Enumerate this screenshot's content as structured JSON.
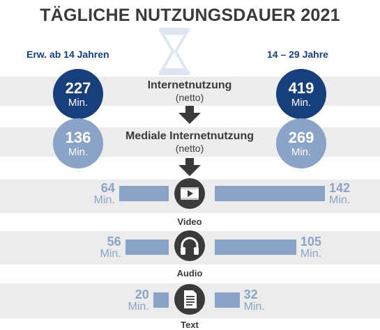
{
  "title": "TÄGLICHE NUTZUNGSDAUER 2021",
  "groups": {
    "left": "Erw. ab 14 Jahren",
    "right": "14 – 29 Jahre"
  },
  "unit": "Min.",
  "summary": [
    {
      "main": "Internetnutzung",
      "sub": "(netto)",
      "left": 227,
      "right": 419
    },
    {
      "main": "Mediale Internetnutzung",
      "sub": "(netto)",
      "left": 136,
      "right": 269
    }
  ],
  "chart_data": {
    "type": "bar",
    "title": "TÄGLICHE NUTZUNGSDAUER 2021",
    "categories": [
      "Video",
      "Audio",
      "Text"
    ],
    "series": [
      {
        "name": "Erw. ab 14 Jahren",
        "values": [
          64,
          56,
          20
        ]
      },
      {
        "name": "14 – 29 Jahre",
        "values": [
          142,
          105,
          32
        ]
      }
    ],
    "unit": "Min.",
    "icons": [
      "video-icon",
      "headphones-icon",
      "document-icon"
    ],
    "colors": {
      "dark": "#173f7c",
      "light": "#8aa3c7",
      "band": "#ececec",
      "icon": "#3a3a3a"
    }
  }
}
